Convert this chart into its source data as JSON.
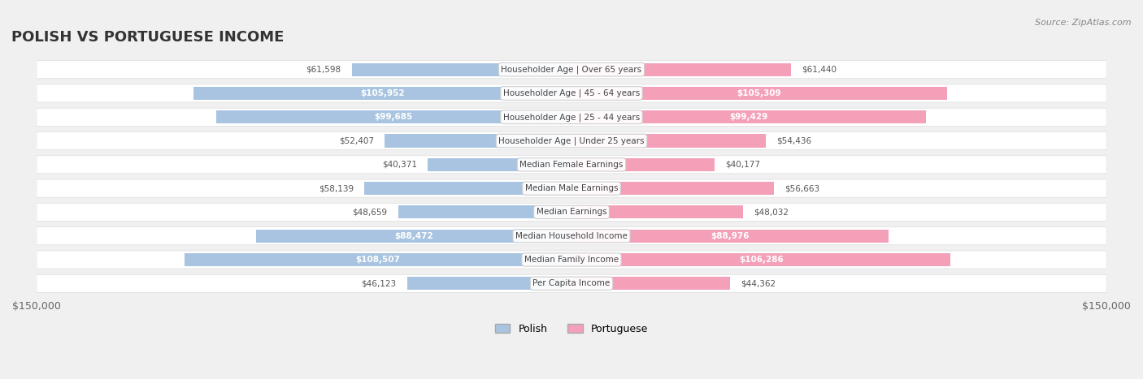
{
  "title": "POLISH VS PORTUGUESE INCOME",
  "source": "Source: ZipAtlas.com",
  "categories": [
    "Per Capita Income",
    "Median Family Income",
    "Median Household Income",
    "Median Earnings",
    "Median Male Earnings",
    "Median Female Earnings",
    "Householder Age | Under 25 years",
    "Householder Age | 25 - 44 years",
    "Householder Age | 45 - 64 years",
    "Householder Age | Over 65 years"
  ],
  "polish_values": [
    46123,
    108507,
    88472,
    48659,
    58139,
    40371,
    52407,
    99685,
    105952,
    61598
  ],
  "portuguese_values": [
    44362,
    106286,
    88976,
    48032,
    56663,
    40177,
    54436,
    99429,
    105309,
    61440
  ],
  "polish_labels": [
    "$46,123",
    "$108,507",
    "$88,472",
    "$48,659",
    "$58,139",
    "$40,371",
    "$52,407",
    "$99,685",
    "$105,952",
    "$61,598"
  ],
  "portuguese_labels": [
    "$44,362",
    "$106,286",
    "$88,976",
    "$48,032",
    "$56,663",
    "$40,177",
    "$54,436",
    "$99,429",
    "$105,309",
    "$61,440"
  ],
  "polish_color": "#a8c4e0",
  "portuguese_color": "#f4a0b8",
  "polish_color_dark": "#7bafd4",
  "portuguese_color_dark": "#f080a0",
  "max_value": 150000,
  "axis_label_left": "$150,000",
  "axis_label_right": "$150,000",
  "legend_polish": "Polish",
  "legend_portuguese": "Portuguese",
  "bg_color": "#f0f0f0",
  "row_bg": "#f7f7f7",
  "row_bg_alt": "#ffffff"
}
